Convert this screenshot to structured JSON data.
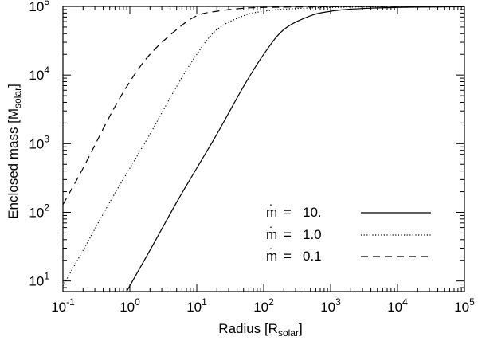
{
  "chart_data": {
    "type": "line",
    "title": "",
    "xlabel": {
      "text": "Radius [R",
      "sub": "solar",
      "suffix": "]"
    },
    "ylabel": {
      "text": "Enclosed mass [M",
      "sub": "solar",
      "suffix": "]"
    },
    "xscale": "log",
    "yscale": "log",
    "xlim": [
      0.1,
      100000
    ],
    "ylim": [
      7,
      100000
    ],
    "x_ticks": [
      {
        "value": 0.1,
        "base": "10",
        "exp": "-1"
      },
      {
        "value": 1,
        "base": "10",
        "exp": "0"
      },
      {
        "value": 10,
        "base": "10",
        "exp": "1"
      },
      {
        "value": 100,
        "base": "10",
        "exp": "2"
      },
      {
        "value": 1000,
        "base": "10",
        "exp": "3"
      },
      {
        "value": 10000,
        "base": "10",
        "exp": "4"
      },
      {
        "value": 100000,
        "base": "10",
        "exp": "5"
      }
    ],
    "y_ticks": [
      {
        "value": 10,
        "base": "10",
        "exp": "1"
      },
      {
        "value": 100,
        "base": "10",
        "exp": "2"
      },
      {
        "value": 1000,
        "base": "10",
        "exp": "3"
      },
      {
        "value": 10000,
        "base": "10",
        "exp": "4"
      },
      {
        "value": 100000,
        "base": "10",
        "exp": "5"
      }
    ],
    "grid": false,
    "legend_position": "bottom-right",
    "series": [
      {
        "name": "m = 10.",
        "dash": "solid",
        "points": [
          [
            0.9,
            7
          ],
          [
            1,
            8.5
          ],
          [
            2,
            28
          ],
          [
            5,
            140
          ],
          [
            10,
            440
          ],
          [
            20,
            1380
          ],
          [
            50,
            6800
          ],
          [
            100,
            20000
          ],
          [
            200,
            46000
          ],
          [
            500,
            73000
          ],
          [
            1000,
            85000
          ],
          [
            2000,
            91000
          ],
          [
            5000,
            95000
          ],
          [
            10000,
            96500
          ],
          [
            20000,
            97500
          ],
          [
            50000,
            98500
          ],
          [
            100000,
            99000
          ]
        ]
      },
      {
        "name": "m = 1.0",
        "dash": "dotted",
        "points": [
          [
            0.1,
            8.5
          ],
          [
            0.2,
            28
          ],
          [
            0.5,
            140
          ],
          [
            1,
            440
          ],
          [
            2,
            1380
          ],
          [
            5,
            6800
          ],
          [
            10,
            20000
          ],
          [
            20,
            46000
          ],
          [
            50,
            73000
          ],
          [
            100,
            85000
          ],
          [
            200,
            91000
          ],
          [
            500,
            95000
          ],
          [
            1000,
            96500
          ],
          [
            2000,
            97500
          ],
          [
            5000,
            98500
          ],
          [
            10000,
            99000
          ],
          [
            20000,
            99300
          ],
          [
            50000,
            99600
          ],
          [
            100000,
            99800
          ]
        ]
      },
      {
        "name": "m = 0.1",
        "dash": "dashed",
        "points": [
          [
            0.1,
            130
          ],
          [
            0.2,
            440
          ],
          [
            0.5,
            2500
          ],
          [
            1,
            8000
          ],
          [
            2,
            20000
          ],
          [
            5,
            46000
          ],
          [
            10,
            73000
          ],
          [
            20,
            85000
          ],
          [
            50,
            94000
          ],
          [
            100,
            96500
          ],
          [
            200,
            97500
          ],
          [
            500,
            98500
          ],
          [
            1000,
            99000
          ],
          [
            5000,
            99500
          ],
          [
            10000,
            99600
          ],
          [
            100000,
            99800
          ]
        ]
      }
    ]
  },
  "legend": [
    {
      "m": "m",
      "eq": "= ",
      "value": "10."
    },
    {
      "m": "m",
      "eq": "= ",
      "value": "1.0"
    },
    {
      "m": "m",
      "eq": "= ",
      "value": "0.1"
    }
  ]
}
